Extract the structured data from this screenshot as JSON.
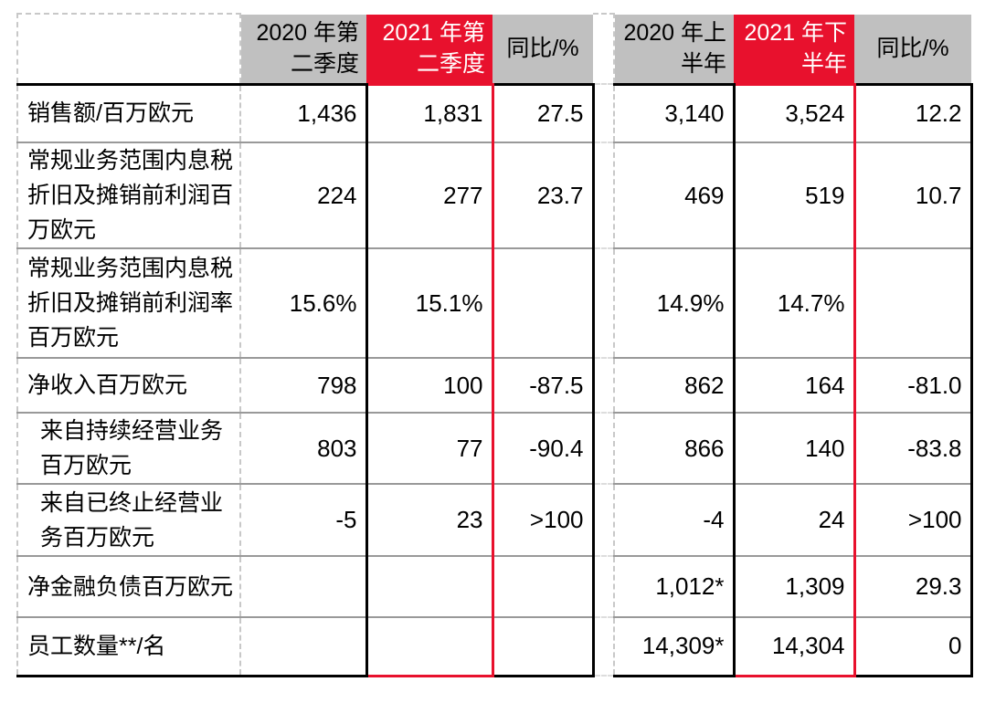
{
  "colors": {
    "highlight_red": "#e8112d",
    "header_gray": "#c0c0c0",
    "row_separator_gray": "#999999",
    "dashed_grid_gray": "#c8c8c8",
    "text": "#000000"
  },
  "table": {
    "corner_label": "",
    "header": {
      "columns": [
        {
          "id": "q2-2020",
          "label": "2020 年第\n二季度",
          "style": "gray"
        },
        {
          "id": "q2-2021",
          "label": "2021 年第\n二季度",
          "style": "red"
        },
        {
          "id": "yoy-quarter",
          "label": "同比/%",
          "style": "pct"
        },
        {
          "id": "spacer",
          "label": "",
          "style": "spacer"
        },
        {
          "id": "h1-2020",
          "label": "2020 年上\n半年",
          "style": "gray"
        },
        {
          "id": "h2-2021",
          "label": "2021 年下\n半年",
          "style": "red"
        },
        {
          "id": "yoy-half",
          "label": "同比/%",
          "style": "pct"
        }
      ]
    },
    "rows": [
      {
        "label": "销售额/百万欧元",
        "indent": false,
        "values": [
          "1,436",
          "1,831",
          "27.5",
          "3,140",
          "3,524",
          "12.2"
        ]
      },
      {
        "label": "常规业务范围内息税\n折旧及摊销前利润百\n万欧元",
        "indent": false,
        "values": [
          "224",
          "277",
          "23.7",
          "469",
          "519",
          "10.7"
        ]
      },
      {
        "label": "常规业务范围内息税\n折旧及摊销前利润率\n百万欧元",
        "indent": false,
        "values": [
          "15.6%",
          "15.1%",
          "",
          "14.9%",
          "14.7%",
          ""
        ]
      },
      {
        "label": "净收入百万欧元",
        "indent": false,
        "values": [
          "798",
          "100",
          "-87.5",
          "862",
          "164",
          "-81.0"
        ]
      },
      {
        "label": "来自持续经营业务\n百万欧元",
        "indent": true,
        "values": [
          "803",
          "77",
          "-90.4",
          "866",
          "140",
          "-83.8"
        ]
      },
      {
        "label": "来自已终止经营业\n务百万欧元",
        "indent": true,
        "values": [
          "-5",
          "23",
          ">100",
          "-4",
          "24",
          ">100"
        ]
      },
      {
        "label": "净金融负债百万欧元",
        "indent": false,
        "values": [
          "",
          "",
          "",
          "1,012*",
          "1,309",
          "29.3"
        ]
      },
      {
        "label": "员工数量**/名",
        "indent": false,
        "values": [
          "",
          "",
          "",
          "14,309*",
          "14,304",
          "0"
        ]
      }
    ]
  }
}
